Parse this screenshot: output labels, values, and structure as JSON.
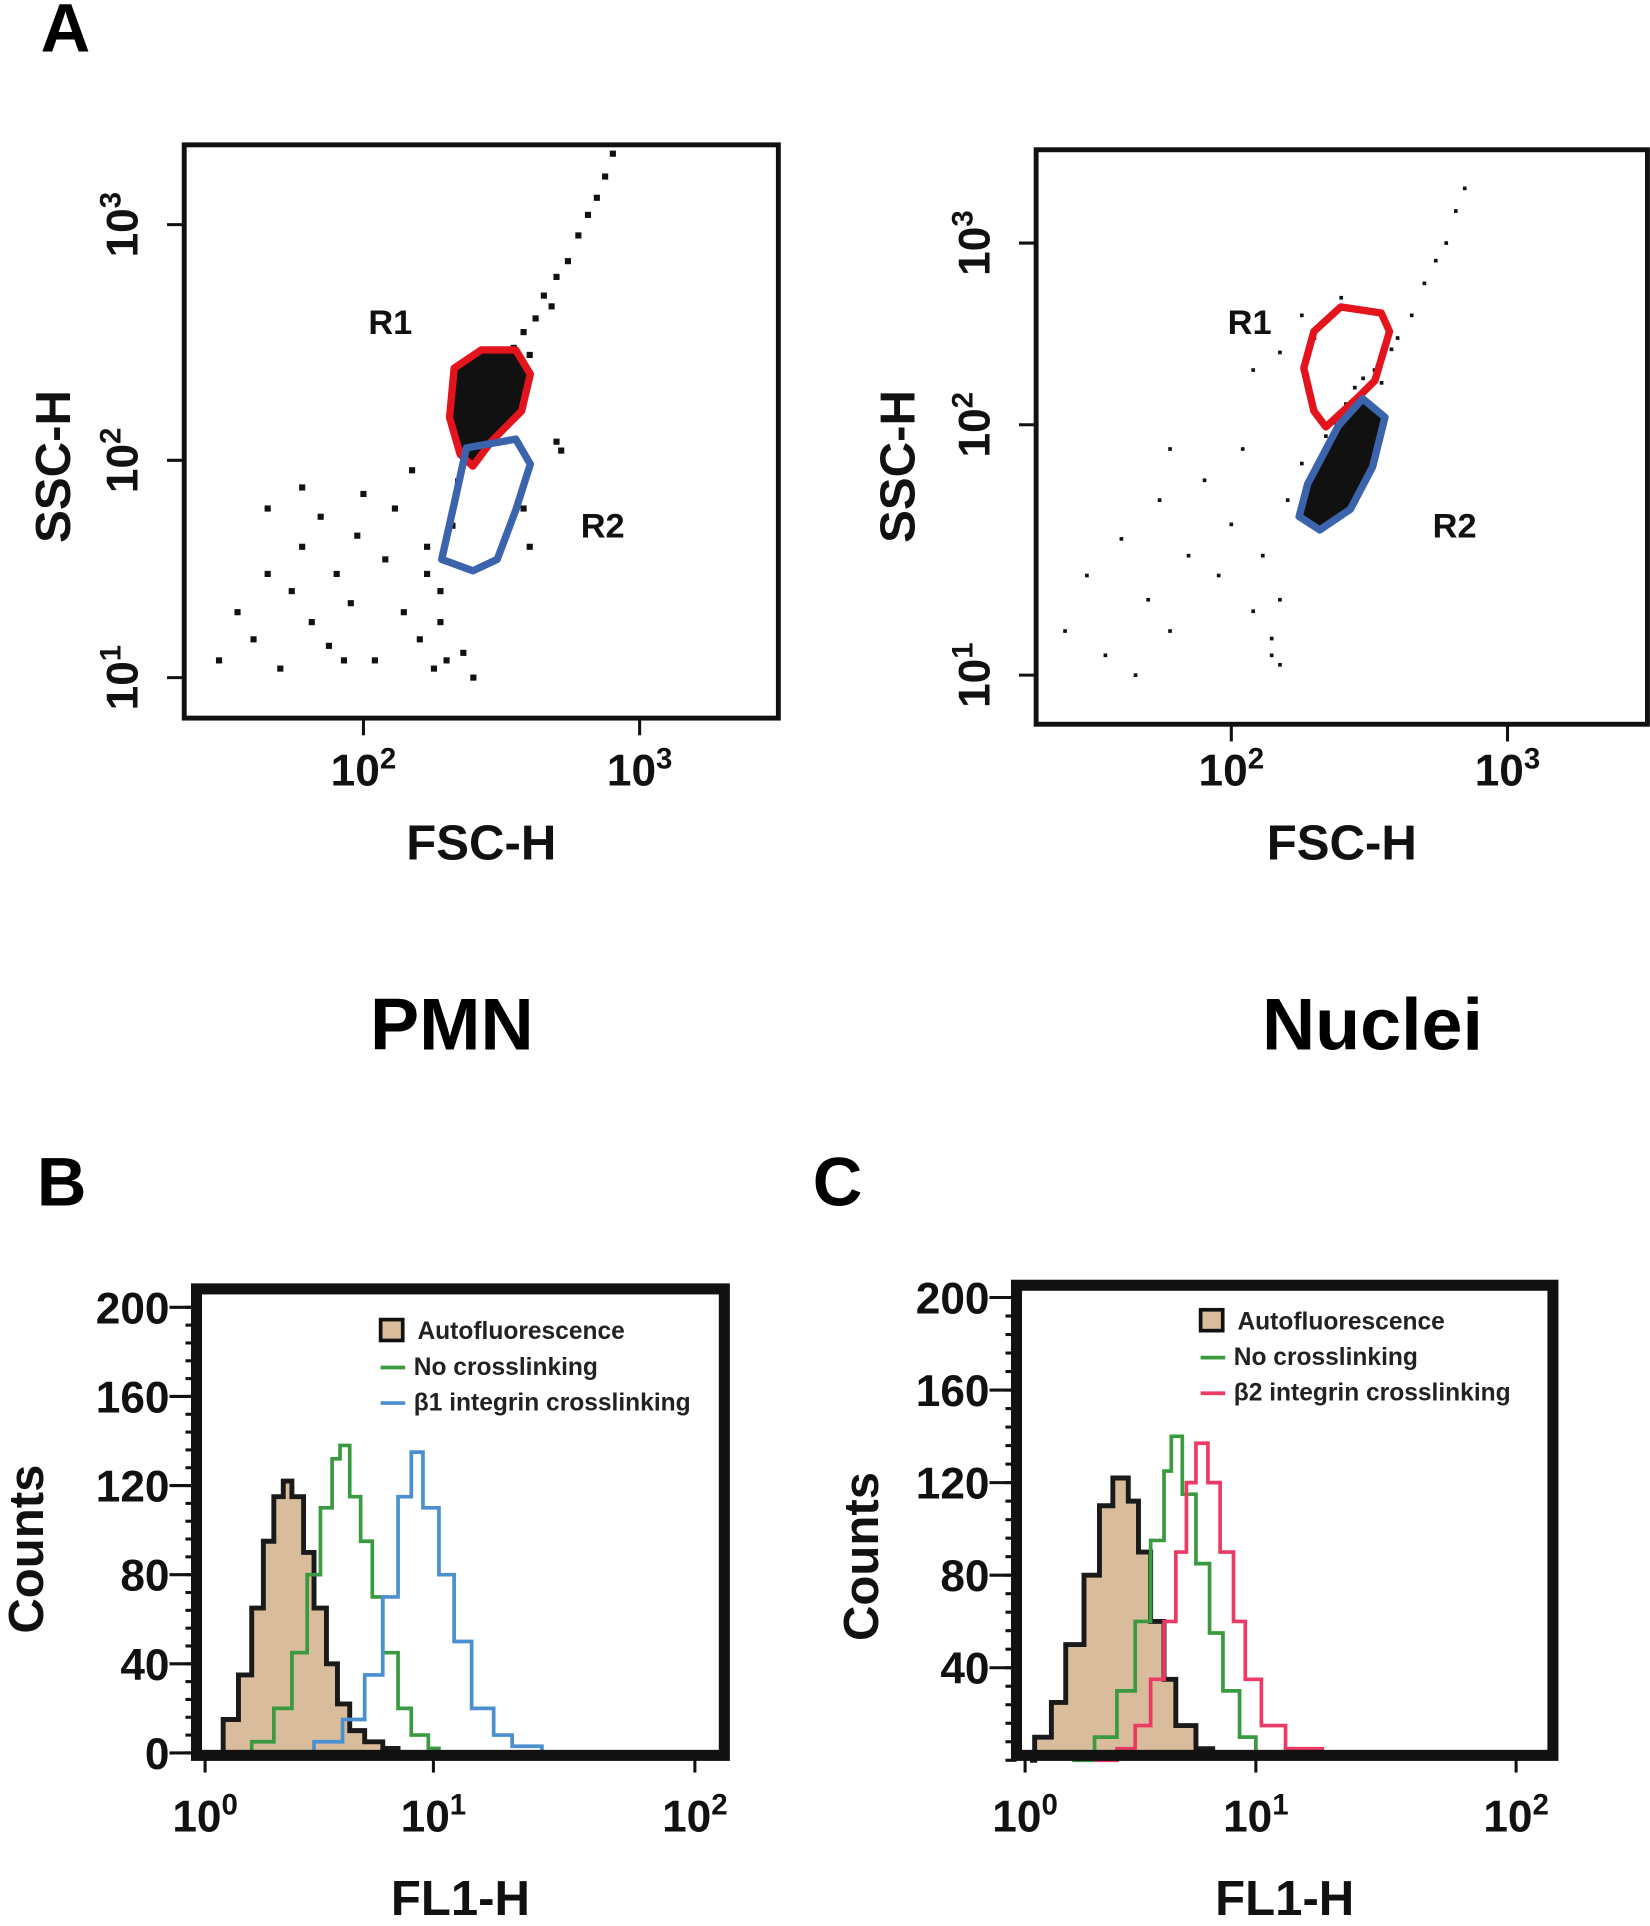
{
  "panel_letters": {
    "a": "A",
    "b": "B",
    "c": "C"
  },
  "panel_a_titles": {
    "left": "PMN",
    "right": "Nuclei"
  },
  "chart_data": [
    {
      "id": "pmn",
      "type": "scatter",
      "xlabel": "FSC-H",
      "ylabel": "SSC-H",
      "xscale": "log",
      "yscale": "log",
      "x_ticks": [
        {
          "base": "10",
          "exp": "2"
        },
        {
          "base": "10",
          "exp": "3"
        }
      ],
      "y_ticks": [
        {
          "base": "10",
          "exp": "3"
        },
        {
          "base": "10",
          "exp": "2"
        },
        {
          "base": "10",
          "exp": "1"
        }
      ],
      "points": [
        [
          30,
          12
        ],
        [
          35,
          20
        ],
        [
          40,
          15
        ],
        [
          45,
          30
        ],
        [
          50,
          11
        ],
        [
          55,
          25
        ],
        [
          60,
          40
        ],
        [
          65,
          18
        ],
        [
          70,
          55
        ],
        [
          75,
          14
        ],
        [
          80,
          30
        ],
        [
          90,
          22
        ],
        [
          95,
          45
        ],
        [
          100,
          70
        ],
        [
          110,
          12
        ],
        [
          120,
          35
        ],
        [
          130,
          60
        ],
        [
          140,
          20
        ],
        [
          150,
          90
        ],
        [
          160,
          15
        ],
        [
          170,
          40
        ],
        [
          180,
          11
        ],
        [
          190,
          25
        ],
        [
          200,
          12
        ],
        [
          210,
          50
        ],
        [
          220,
          80
        ],
        [
          240,
          130
        ],
        [
          260,
          180
        ],
        [
          280,
          160
        ],
        [
          300,
          220
        ],
        [
          320,
          250
        ],
        [
          350,
          300
        ],
        [
          380,
          350
        ],
        [
          400,
          280
        ],
        [
          420,
          400
        ],
        [
          450,
          500
        ],
        [
          480,
          450
        ],
        [
          500,
          600
        ],
        [
          550,
          700
        ],
        [
          600,
          900
        ],
        [
          650,
          1100
        ],
        [
          700,
          1300
        ],
        [
          750,
          1600
        ],
        [
          800,
          2000
        ],
        [
          500,
          120
        ],
        [
          520,
          110
        ],
        [
          380,
          60
        ],
        [
          400,
          40
        ],
        [
          45,
          60
        ],
        [
          60,
          75
        ],
        [
          85,
          12
        ],
        [
          250,
          10
        ],
        [
          230,
          13
        ],
        [
          190,
          18
        ],
        [
          170,
          30
        ],
        [
          230,
          180
        ],
        [
          250,
          150
        ],
        [
          270,
          200
        ],
        [
          300,
          170
        ],
        [
          330,
          230
        ]
      ],
      "gates": [
        {
          "name": "R1",
          "color": "#e3141c",
          "filled": true,
          "vertices": [
            [
              213,
              246
            ],
            [
              267,
              294
            ],
            [
              356,
              294
            ],
            [
              402,
              232
            ],
            [
              374,
              162
            ],
            [
              290,
              120
            ],
            [
              249,
              94
            ],
            [
              224,
              106
            ],
            [
              205,
              152
            ]
          ]
        },
        {
          "name": "R2",
          "color": "#3b64ad",
          "filled": false,
          "vertices": [
            [
              236,
              113
            ],
            [
              356,
              123
            ],
            [
              402,
              96
            ],
            [
              356,
              59
            ],
            [
              305,
              35
            ],
            [
              249,
              31
            ],
            [
              192,
              35
            ],
            [
              213,
              63
            ]
          ]
        }
      ]
    },
    {
      "id": "nuclei",
      "type": "scatter",
      "xlabel": "FSC-H",
      "ylabel": "SSC-H",
      "xscale": "log",
      "yscale": "log",
      "x_ticks": [
        {
          "base": "10",
          "exp": "2"
        },
        {
          "base": "10",
          "exp": "3"
        }
      ],
      "y_ticks": [
        {
          "base": "10",
          "exp": "3"
        },
        {
          "base": "10",
          "exp": "2"
        },
        {
          "base": "10",
          "exp": "1"
        }
      ],
      "points": [
        [
          25,
          15
        ],
        [
          30,
          25
        ],
        [
          35,
          12
        ],
        [
          40,
          35
        ],
        [
          50,
          20
        ],
        [
          55,
          50
        ],
        [
          60,
          15
        ],
        [
          70,
          30
        ],
        [
          80,
          60
        ],
        [
          90,
          25
        ],
        [
          100,
          40
        ],
        [
          110,
          80
        ],
        [
          120,
          18
        ],
        [
          130,
          30
        ],
        [
          140,
          14
        ],
        [
          150,
          20
        ],
        [
          160,
          50
        ],
        [
          180,
          70
        ],
        [
          200,
          60
        ],
        [
          220,
          90
        ],
        [
          240,
          100
        ],
        [
          260,
          130
        ],
        [
          280,
          160
        ],
        [
          300,
          180
        ],
        [
          330,
          200
        ],
        [
          350,
          230
        ],
        [
          380,
          260
        ],
        [
          400,
          300
        ],
        [
          450,
          400
        ],
        [
          500,
          600
        ],
        [
          550,
          800
        ],
        [
          600,
          1000
        ],
        [
          650,
          1500
        ],
        [
          700,
          2000
        ],
        [
          180,
          400
        ],
        [
          200,
          300
        ],
        [
          150,
          250
        ],
        [
          250,
          500
        ],
        [
          120,
          200
        ],
        [
          60,
          80
        ],
        [
          45,
          10
        ],
        [
          250,
          80
        ],
        [
          220,
          55
        ],
        [
          200,
          45
        ],
        [
          300,
          150
        ],
        [
          350,
          170
        ],
        [
          140,
          12
        ],
        [
          150,
          11
        ]
      ],
      "gates": [
        {
          "name": "R1",
          "color": "#e3141c",
          "filled": false,
          "vertices": [
            [
              199,
              326
            ],
            [
              249,
              445
            ],
            [
              349,
              412
            ],
            [
              374,
              326
            ],
            [
              331,
              175
            ],
            [
              284,
              139
            ],
            [
              220,
              98
            ],
            [
              199,
              119
            ],
            [
              183,
              205
            ]
          ]
        },
        {
          "name": "R2",
          "color": "#3b64ad",
          "filled": true,
          "vertices": [
            [
              299,
              139
            ],
            [
              360,
              110
            ],
            [
              325,
              68
            ],
            [
              270,
              46
            ],
            [
              209,
              38
            ],
            [
              176,
              43
            ],
            [
              189,
              58
            ],
            [
              244,
              99
            ]
          ]
        }
      ]
    },
    {
      "id": "b",
      "type": "line",
      "xlabel": "FL1-H",
      "ylabel": "Counts",
      "xscale": "log",
      "ylim": [
        0,
        200
      ],
      "x_ticks": [
        {
          "base": "10",
          "exp": "0"
        },
        {
          "base": "10",
          "exp": "1"
        },
        {
          "base": "10",
          "exp": "2"
        }
      ],
      "y_ticks": [
        "200",
        "160",
        "120",
        "80",
        "40",
        "0"
      ],
      "legend_position": "top-right",
      "series": [
        {
          "name": "Autofluorescence",
          "color": "#1a1a1a",
          "fill": "#d9bc9c",
          "points": [
            [
              1,
              0
            ],
            [
              1.2,
              15
            ],
            [
              1.4,
              35
            ],
            [
              1.6,
              65
            ],
            [
              1.8,
              95
            ],
            [
              2.0,
              115
            ],
            [
              2.2,
              122
            ],
            [
              2.4,
              115
            ],
            [
              2.7,
              90
            ],
            [
              3.0,
              65
            ],
            [
              3.4,
              40
            ],
            [
              3.8,
              22
            ],
            [
              4.3,
              10
            ],
            [
              5,
              5
            ],
            [
              6,
              2
            ],
            [
              7,
              0
            ]
          ]
        },
        {
          "name": "No  crosslinking",
          "color": "#3a9a3f",
          "fill": null,
          "points": [
            [
              1.3,
              0
            ],
            [
              1.6,
              5
            ],
            [
              2,
              20
            ],
            [
              2.4,
              45
            ],
            [
              2.8,
              80
            ],
            [
              3.2,
              110
            ],
            [
              3.6,
              132
            ],
            [
              3.9,
              138
            ],
            [
              4.3,
              115
            ],
            [
              4.8,
              95
            ],
            [
              5.4,
              70
            ],
            [
              6,
              45
            ],
            [
              7,
              20
            ],
            [
              8,
              8
            ],
            [
              9.5,
              2
            ],
            [
              10.5,
              0
            ]
          ]
        },
        {
          "name": "β1 integrin crosslinking",
          "color": "#4a8fd0",
          "fill": null,
          "points": [
            [
              2.3,
              0
            ],
            [
              3,
              5
            ],
            [
              4,
              15
            ],
            [
              5,
              35
            ],
            [
              6,
              70
            ],
            [
              7,
              115
            ],
            [
              8,
              135
            ],
            [
              9,
              110
            ],
            [
              10.5,
              80
            ],
            [
              12,
              50
            ],
            [
              14,
              20
            ],
            [
              17,
              8
            ],
            [
              20,
              3
            ],
            [
              26,
              0
            ]
          ]
        }
      ]
    },
    {
      "id": "c",
      "type": "line",
      "xlabel": "FL1-H",
      "ylabel": "Counts",
      "xscale": "log",
      "ylim": [
        0,
        200
      ],
      "x_ticks": [
        {
          "base": "10",
          "exp": "0"
        },
        {
          "base": "10",
          "exp": "1"
        },
        {
          "base": "10",
          "exp": "2"
        }
      ],
      "y_ticks": [
        "200",
        "160",
        "120",
        "80",
        "40"
      ],
      "legend_position": "top-right",
      "series": [
        {
          "name": "Autofluorescence",
          "color": "#1a1a1a",
          "fill": "#d9bc9c",
          "points": [
            [
              1.05,
              0
            ],
            [
              1.1,
              10
            ],
            [
              1.3,
              25
            ],
            [
              1.5,
              50
            ],
            [
              1.8,
              80
            ],
            [
              2.1,
              110
            ],
            [
              2.4,
              122
            ],
            [
              2.8,
              112
            ],
            [
              3.1,
              90
            ],
            [
              3.5,
              60
            ],
            [
              4,
              35
            ],
            [
              4.5,
              15
            ],
            [
              5.5,
              5
            ],
            [
              6.5,
              0
            ]
          ]
        },
        {
          "name": "No  crosslinking",
          "color": "#3a9a3f",
          "fill": null,
          "points": [
            [
              1.6,
              0
            ],
            [
              2,
              10
            ],
            [
              2.5,
              30
            ],
            [
              3,
              60
            ],
            [
              3.5,
              95
            ],
            [
              4,
              125
            ],
            [
              4.3,
              140
            ],
            [
              4.8,
              115
            ],
            [
              5.5,
              85
            ],
            [
              6.3,
              55
            ],
            [
              7.2,
              30
            ],
            [
              8.5,
              10
            ],
            [
              10,
              2
            ],
            [
              11,
              0
            ]
          ]
        },
        {
          "name": "β2 integrin crosslinking",
          "color": "#ec3a64",
          "fill": null,
          "points": [
            [
              2,
              0
            ],
            [
              2.5,
              5
            ],
            [
              3,
              15
            ],
            [
              3.5,
              35
            ],
            [
              4,
              60
            ],
            [
              4.5,
              90
            ],
            [
              5,
              120
            ],
            [
              5.5,
              137
            ],
            [
              6.2,
              120
            ],
            [
              7,
              90
            ],
            [
              8,
              60
            ],
            [
              9,
              35
            ],
            [
              10.5,
              15
            ],
            [
              13,
              5
            ],
            [
              18,
              0
            ]
          ]
        }
      ]
    }
  ]
}
